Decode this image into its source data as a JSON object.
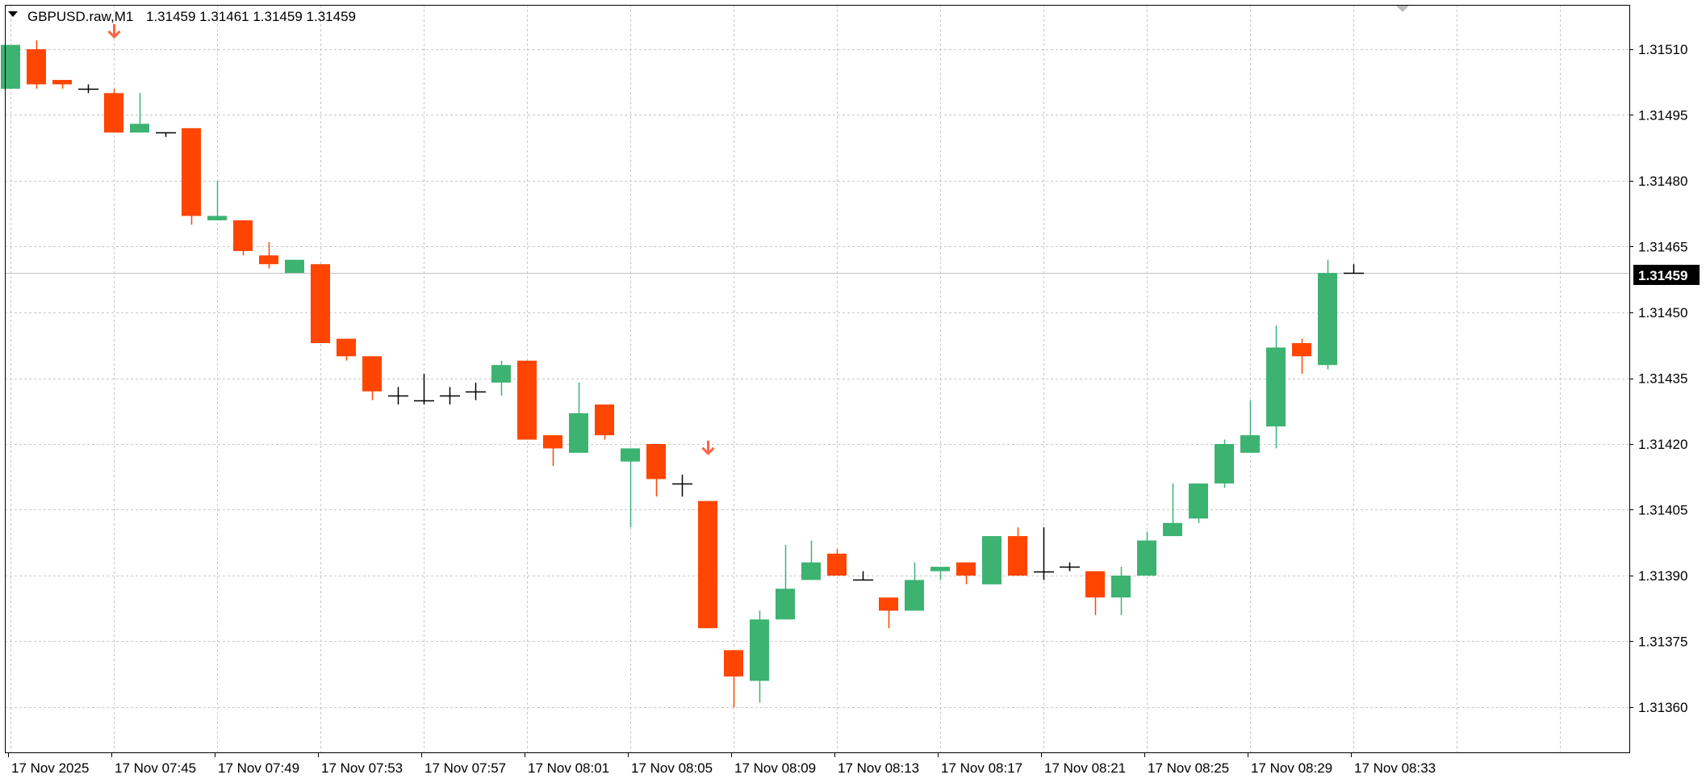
{
  "header": {
    "symbol_label": "GBPUSD.raw,M1",
    "ohlc_label": "1.31459 1.31461 1.31459 1.31459"
  },
  "current_price": {
    "label": "1.31459",
    "value": 1.31459
  },
  "colors": {
    "bull": "#3cb371",
    "bear": "#ff4500",
    "doji": "#000000",
    "grid": "#c8c8c8",
    "price_line": "#c0c0c0",
    "signal_arrow": "#ff6347"
  },
  "chart_data": {
    "type": "candlestick",
    "symbol": "GBPUSD.raw",
    "timeframe": "M1",
    "ylim": [
      1.31348,
      1.3152
    ],
    "y_ticks": [
      "1.31510",
      "1.31495",
      "1.31480",
      "1.31465",
      "1.31450",
      "1.31435",
      "1.31420",
      "1.31405",
      "1.31390",
      "1.31375",
      "1.31360"
    ],
    "y_tick_values": [
      1.3151,
      1.31495,
      1.3148,
      1.31465,
      1.3145,
      1.31435,
      1.3142,
      1.31405,
      1.3139,
      1.31375,
      1.3136
    ],
    "x_labels": [
      "17 Nov 2025",
      "17 Nov 07:45",
      "17 Nov 07:49",
      "17 Nov 07:53",
      "17 Nov 07:57",
      "17 Nov 08:01",
      "17 Nov 08:05",
      "17 Nov 08:09",
      "17 Nov 08:13",
      "17 Nov 08:17",
      "17 Nov 08:21",
      "17 Nov 08:25",
      "17 Nov 08:29",
      "17 Nov 08:33"
    ],
    "x_label_bar_index": [
      0,
      4,
      8,
      12,
      16,
      20,
      24,
      28,
      32,
      36,
      40,
      44,
      48,
      52
    ],
    "candles": [
      {
        "o": 1.31501,
        "h": 1.31511,
        "l": 1.31501,
        "c": 1.31511
      },
      {
        "o": 1.3151,
        "h": 1.31512,
        "l": 1.31501,
        "c": 1.31502
      },
      {
        "o": 1.31503,
        "h": 1.31503,
        "l": 1.31501,
        "c": 1.31502
      },
      {
        "o": 1.31501,
        "h": 1.31502,
        "l": 1.315,
        "c": 1.31501
      },
      {
        "o": 1.315,
        "h": 1.31501,
        "l": 1.31491,
        "c": 1.31491
      },
      {
        "o": 1.31491,
        "h": 1.315,
        "l": 1.31491,
        "c": 1.31493
      },
      {
        "o": 1.31491,
        "h": 1.31491,
        "l": 1.3149,
        "c": 1.31491
      },
      {
        "o": 1.31492,
        "h": 1.31492,
        "l": 1.3147,
        "c": 1.31472
      },
      {
        "o": 1.31471,
        "h": 1.3148,
        "l": 1.31471,
        "c": 1.31472
      },
      {
        "o": 1.31471,
        "h": 1.31471,
        "l": 1.31463,
        "c": 1.31464
      },
      {
        "o": 1.31463,
        "h": 1.31466,
        "l": 1.3146,
        "c": 1.31461
      },
      {
        "o": 1.31459,
        "h": 1.31462,
        "l": 1.31459,
        "c": 1.31462
      },
      {
        "o": 1.31461,
        "h": 1.31461,
        "l": 1.31443,
        "c": 1.31443
      },
      {
        "o": 1.31444,
        "h": 1.31444,
        "l": 1.31439,
        "c": 1.3144
      },
      {
        "o": 1.3144,
        "h": 1.3144,
        "l": 1.3143,
        "c": 1.31432
      },
      {
        "o": 1.31431,
        "h": 1.31433,
        "l": 1.31429,
        "c": 1.31431
      },
      {
        "o": 1.3143,
        "h": 1.31436,
        "l": 1.31429,
        "c": 1.3143
      },
      {
        "o": 1.31431,
        "h": 1.31433,
        "l": 1.31429,
        "c": 1.31431
      },
      {
        "o": 1.31432,
        "h": 1.31434,
        "l": 1.3143,
        "c": 1.31432
      },
      {
        "o": 1.31434,
        "h": 1.31439,
        "l": 1.31431,
        "c": 1.31438
      },
      {
        "o": 1.31439,
        "h": 1.31439,
        "l": 1.31421,
        "c": 1.31421
      },
      {
        "o": 1.31422,
        "h": 1.31422,
        "l": 1.31415,
        "c": 1.31419
      },
      {
        "o": 1.31418,
        "h": 1.31434,
        "l": 1.31418,
        "c": 1.31427
      },
      {
        "o": 1.31429,
        "h": 1.31429,
        "l": 1.31421,
        "c": 1.31422
      },
      {
        "o": 1.31416,
        "h": 1.31419,
        "l": 1.31401,
        "c": 1.31419
      },
      {
        "o": 1.3142,
        "h": 1.3142,
        "l": 1.31408,
        "c": 1.31412
      },
      {
        "o": 1.31411,
        "h": 1.31413,
        "l": 1.31408,
        "c": 1.31411
      },
      {
        "o": 1.31407,
        "h": 1.31407,
        "l": 1.31378,
        "c": 1.31378
      },
      {
        "o": 1.31373,
        "h": 1.31373,
        "l": 1.3136,
        "c": 1.31367
      },
      {
        "o": 1.31366,
        "h": 1.31382,
        "l": 1.31361,
        "c": 1.3138
      },
      {
        "o": 1.3138,
        "h": 1.31397,
        "l": 1.3138,
        "c": 1.31387
      },
      {
        "o": 1.31389,
        "h": 1.31398,
        "l": 1.31389,
        "c": 1.31393
      },
      {
        "o": 1.31395,
        "h": 1.31396,
        "l": 1.3139,
        "c": 1.3139
      },
      {
        "o": 1.31389,
        "h": 1.31391,
        "l": 1.31389,
        "c": 1.31389
      },
      {
        "o": 1.31385,
        "h": 1.31385,
        "l": 1.31378,
        "c": 1.31382
      },
      {
        "o": 1.31382,
        "h": 1.31393,
        "l": 1.31382,
        "c": 1.31389
      },
      {
        "o": 1.31391,
        "h": 1.31391,
        "l": 1.31389,
        "c": 1.31392
      },
      {
        "o": 1.31393,
        "h": 1.31393,
        "l": 1.31388,
        "c": 1.3139
      },
      {
        "o": 1.31388,
        "h": 1.31399,
        "l": 1.31388,
        "c": 1.31399
      },
      {
        "o": 1.31399,
        "h": 1.31401,
        "l": 1.3139,
        "c": 1.3139
      },
      {
        "o": 1.31391,
        "h": 1.31401,
        "l": 1.31389,
        "c": 1.31391
      },
      {
        "o": 1.31392,
        "h": 1.31393,
        "l": 1.31391,
        "c": 1.31392
      },
      {
        "o": 1.31391,
        "h": 1.31391,
        "l": 1.31381,
        "c": 1.31385
      },
      {
        "o": 1.31385,
        "h": 1.31392,
        "l": 1.31381,
        "c": 1.3139
      },
      {
        "o": 1.3139,
        "h": 1.314,
        "l": 1.3139,
        "c": 1.31398
      },
      {
        "o": 1.31399,
        "h": 1.31411,
        "l": 1.31399,
        "c": 1.31402
      },
      {
        "o": 1.31403,
        "h": 1.31411,
        "l": 1.31402,
        "c": 1.31411
      },
      {
        "o": 1.31411,
        "h": 1.31421,
        "l": 1.3141,
        "c": 1.3142
      },
      {
        "o": 1.31418,
        "h": 1.3143,
        "l": 1.31418,
        "c": 1.31422
      },
      {
        "o": 1.31424,
        "h": 1.31447,
        "l": 1.31419,
        "c": 1.31442
      },
      {
        "o": 1.31443,
        "h": 1.31444,
        "l": 1.31436,
        "c": 1.3144
      },
      {
        "o": 1.31438,
        "h": 1.31462,
        "l": 1.31437,
        "c": 1.31459
      },
      {
        "o": 1.31459,
        "h": 1.31461,
        "l": 1.31459,
        "c": 1.31459
      }
    ],
    "signal_arrows": [
      {
        "bar_index": 4,
        "direction": "down",
        "level": 1.31513
      },
      {
        "bar_index": 27,
        "direction": "down",
        "level": 1.31418
      }
    ]
  }
}
